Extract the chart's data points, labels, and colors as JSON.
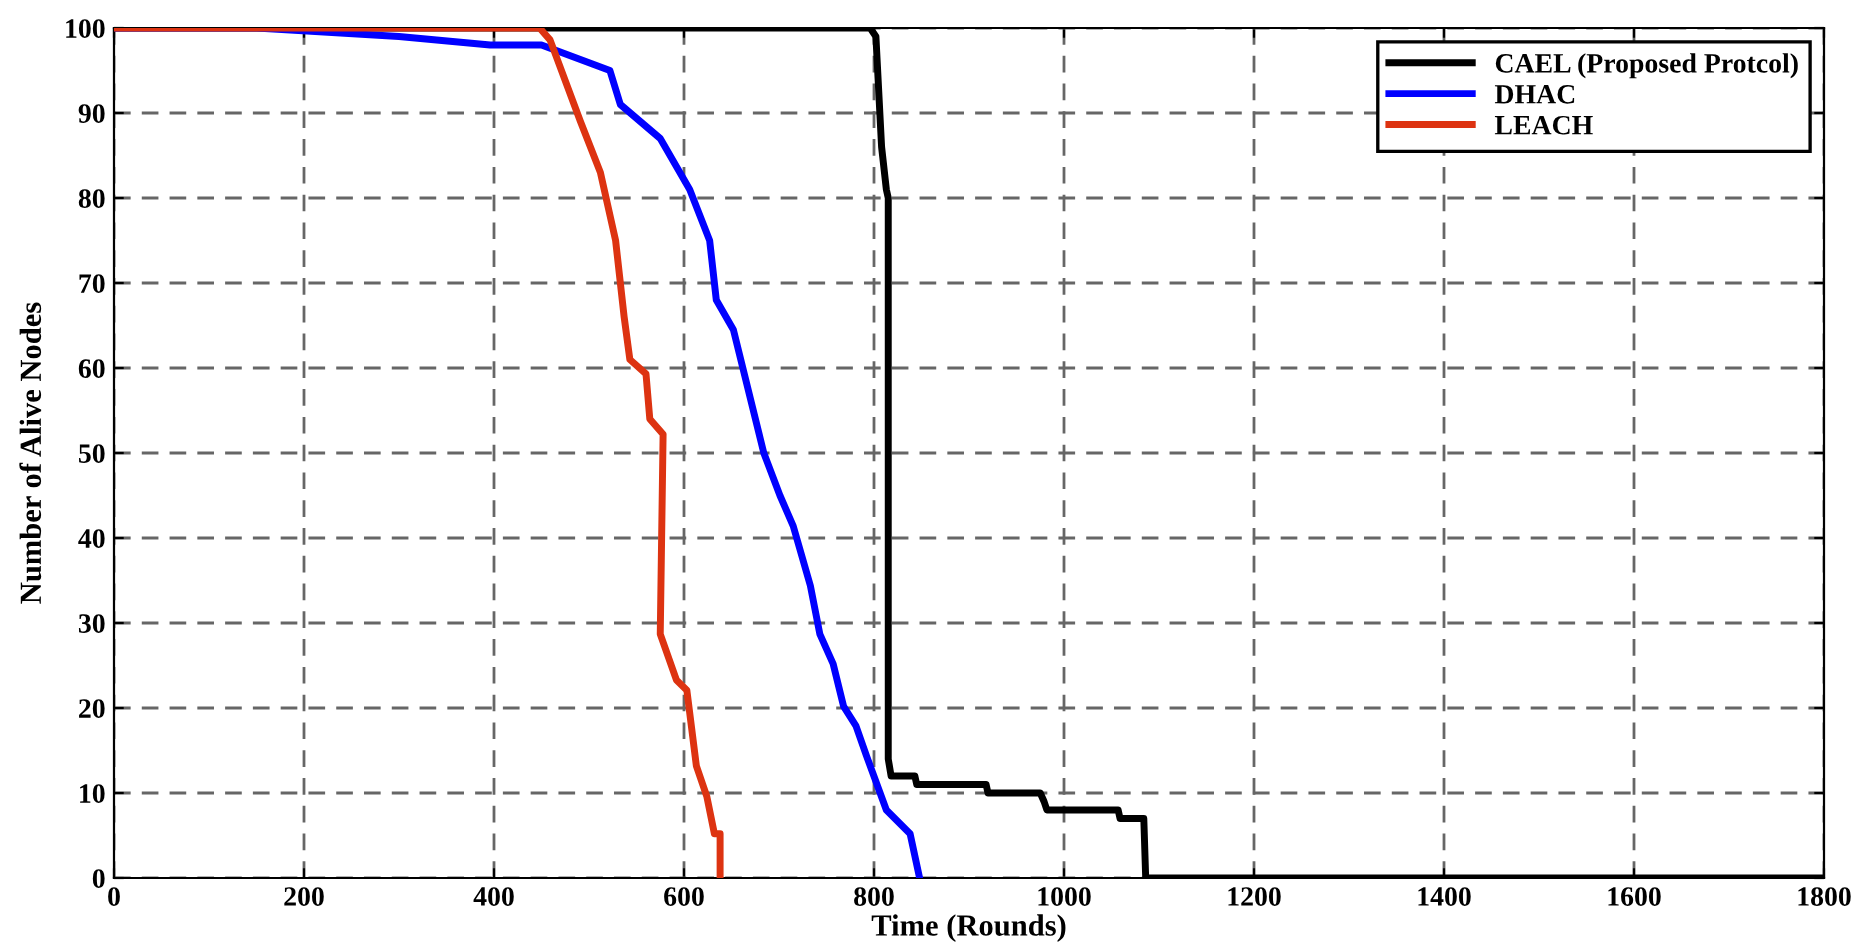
{
  "chart_data": {
    "type": "line",
    "xlabel": "Time (Rounds)",
    "ylabel": "Number of Alive Nodes",
    "xlim": [
      0,
      1800
    ],
    "ylim": [
      0,
      100
    ],
    "xticks": [
      0,
      200,
      400,
      600,
      800,
      1000,
      1200,
      1400,
      1600,
      1800
    ],
    "yticks": [
      0,
      10,
      20,
      30,
      40,
      50,
      60,
      70,
      80,
      90,
      100
    ],
    "grid": true,
    "legend": "top right",
    "line_style": "solid",
    "marker": "none",
    "series": [
      {
        "name": "CAEL (Proposed Protcol)",
        "color": "#000000",
        "x": [
          0,
          796,
          802,
          808,
          813,
          815,
          815,
          818,
          843,
          845,
          918,
          920,
          975,
          979,
          982,
          1057,
          1059,
          1084,
          1086,
          1800
        ],
        "values": [
          100,
          100,
          99,
          86,
          81,
          80,
          14,
          12,
          12,
          11,
          11,
          10,
          10,
          9,
          8,
          8,
          7,
          7,
          0,
          0
        ]
      },
      {
        "name": "DHAC",
        "color": "#0000ff",
        "x": [
          0,
          150,
          300,
          396,
          450,
          522,
          533,
          575,
          606,
          627,
          634,
          652,
          684,
          701,
          715,
          733,
          743,
          757,
          768,
          781,
          792,
          813,
          838,
          848
        ],
        "values": [
          100,
          100,
          99,
          98,
          98,
          95,
          91,
          87,
          81,
          75,
          68,
          64.5,
          50,
          45,
          41.4,
          34.4,
          28.7,
          25.2,
          20.2,
          17.9,
          14.4,
          8,
          5.2,
          0
        ]
      },
      {
        "name": "LEACH",
        "color": "#dd3311",
        "x": [
          0,
          440,
          448,
          459,
          491,
          512,
          528,
          537,
          543,
          560,
          564,
          578,
          575,
          592,
          603,
          613,
          624,
          632,
          638,
          638
        ],
        "values": [
          100,
          100,
          100,
          98.6,
          89,
          83,
          75,
          66,
          61,
          59.3,
          54,
          52.2,
          28.7,
          23.3,
          22.1,
          13.2,
          9.6,
          5.2,
          5.2,
          0
        ]
      }
    ]
  }
}
